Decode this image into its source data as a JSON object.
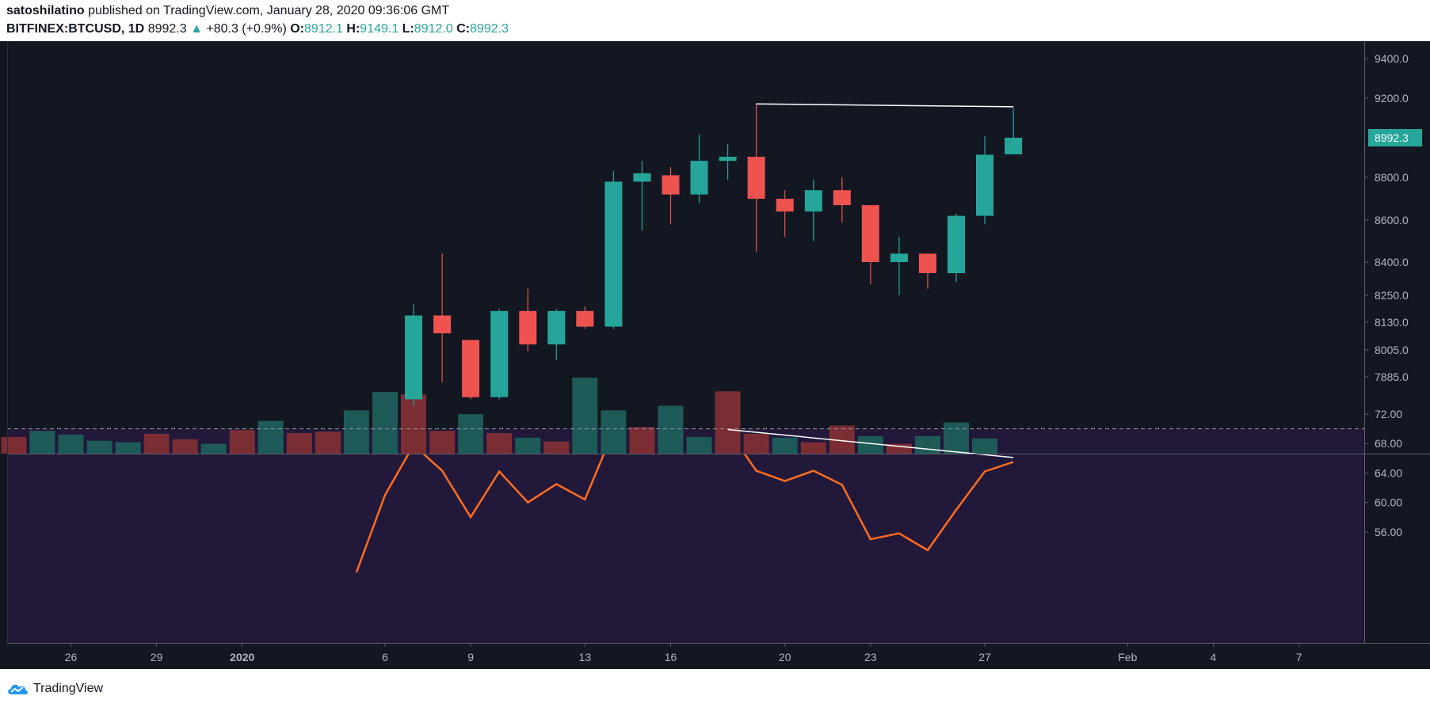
{
  "header": {
    "author": "satoshilatino",
    "published_text": "published on TradingView.com, January 28, 2020 09:36:06 GMT",
    "symbol": "BITFINEX:BTCUSD, 1D",
    "last_price": "8992.3",
    "change": "+80.3 (+0.9%)",
    "o_label": "O:",
    "o_value": "8912.1",
    "h_label": "H:",
    "h_value": "9149.1",
    "l_label": "L:",
    "l_value": "8912.0",
    "c_label": "C:",
    "c_value": "8992.3"
  },
  "footer": {
    "brand": "TradingView"
  },
  "colors": {
    "background": "#131722",
    "rsi_band": "#21183a",
    "up": "#26a69a",
    "down": "#ef5350",
    "vol_up": "#1e5a57",
    "vol_down": "#7a2e33",
    "rsi_line": "#ff6d1f",
    "trendline": "#ffffff"
  },
  "chart_data": [
    {
      "type": "candlestick",
      "price_ticks": [
        "9400.0",
        "9200.0",
        "8800.0",
        "8600.0",
        "8400.0",
        "8250.0",
        "8130.0",
        "8005.0",
        "7885.0"
      ],
      "last_price_label": "8992.3",
      "x_ticks": [
        "26",
        "29",
        "2020",
        "6",
        "9",
        "13",
        "16",
        "20",
        "23",
        "27",
        "Feb",
        "4",
        "7"
      ],
      "ohlc": [
        {
          "date": "2020-01-07",
          "o": 7780,
          "h": 8210,
          "l": 7750,
          "c": 8160
        },
        {
          "date": "2020-01-08",
          "o": 8160,
          "h": 8440,
          "l": 7860,
          "c": 8080
        },
        {
          "date": "2020-01-09",
          "o": 8050,
          "h": 8050,
          "l": 7780,
          "c": 7790
        },
        {
          "date": "2020-01-10",
          "o": 7790,
          "h": 8190,
          "l": 7780,
          "c": 8180
        },
        {
          "date": "2020-01-11",
          "o": 8180,
          "h": 8280,
          "l": 8000,
          "c": 8030
        },
        {
          "date": "2020-01-12",
          "o": 8030,
          "h": 8190,
          "l": 7960,
          "c": 8180
        },
        {
          "date": "2020-01-13",
          "o": 8180,
          "h": 8200,
          "l": 8100,
          "c": 8110
        },
        {
          "date": "2020-01-14",
          "o": 8110,
          "h": 8830,
          "l": 8100,
          "c": 8780
        },
        {
          "date": "2020-01-15",
          "o": 8780,
          "h": 8880,
          "l": 8550,
          "c": 8820
        },
        {
          "date": "2020-01-16",
          "o": 8810,
          "h": 8850,
          "l": 8580,
          "c": 8720
        },
        {
          "date": "2020-01-17",
          "o": 8720,
          "h": 9010,
          "l": 8680,
          "c": 8880
        },
        {
          "date": "2020-01-18",
          "o": 8880,
          "h": 8960,
          "l": 8790,
          "c": 8900
        },
        {
          "date": "2020-01-19",
          "o": 8900,
          "h": 9170,
          "l": 8450,
          "c": 8700
        },
        {
          "date": "2020-01-20",
          "o": 8700,
          "h": 8740,
          "l": 8520,
          "c": 8640
        },
        {
          "date": "2020-01-21",
          "o": 8640,
          "h": 8790,
          "l": 8500,
          "c": 8740
        },
        {
          "date": "2020-01-22",
          "o": 8740,
          "h": 8800,
          "l": 8590,
          "c": 8670
        },
        {
          "date": "2020-01-23",
          "o": 8670,
          "h": 8670,
          "l": 8300,
          "c": 8400
        },
        {
          "date": "2020-01-24",
          "o": 8400,
          "h": 8520,
          "l": 8250,
          "c": 8440
        },
        {
          "date": "2020-01-25",
          "o": 8440,
          "h": 8440,
          "l": 8280,
          "c": 8350
        },
        {
          "date": "2020-01-26",
          "o": 8350,
          "h": 8630,
          "l": 8310,
          "c": 8620
        },
        {
          "date": "2020-01-27",
          "o": 8620,
          "h": 9000,
          "l": 8580,
          "c": 8910
        },
        {
          "date": "2020-01-28",
          "o": 8912.1,
          "h": 9149.1,
          "l": 8912.0,
          "c": 8992.3
        }
      ],
      "volume": [
        {
          "date": "2019-12-23",
          "dir": "down",
          "v": 0.27
        },
        {
          "date": "2019-12-24",
          "dir": "down",
          "v": 0.22
        },
        {
          "date": "2019-12-25",
          "dir": "up",
          "v": 0.3
        },
        {
          "date": "2019-12-26",
          "dir": "up",
          "v": 0.25
        },
        {
          "date": "2019-12-27",
          "dir": "up",
          "v": 0.17
        },
        {
          "date": "2019-12-28",
          "dir": "up",
          "v": 0.15
        },
        {
          "date": "2019-12-29",
          "dir": "down",
          "v": 0.26
        },
        {
          "date": "2019-12-30",
          "dir": "down",
          "v": 0.19
        },
        {
          "date": "2019-12-31",
          "dir": "up",
          "v": 0.13
        },
        {
          "date": "2020-01-01",
          "dir": "down",
          "v": 0.31
        },
        {
          "date": "2020-01-02",
          "dir": "up",
          "v": 0.43
        },
        {
          "date": "2020-01-03",
          "dir": "down",
          "v": 0.27
        },
        {
          "date": "2020-01-04",
          "dir": "down",
          "v": 0.29
        },
        {
          "date": "2020-01-05",
          "dir": "up",
          "v": 0.57
        },
        {
          "date": "2020-01-06",
          "dir": "up",
          "v": 0.81
        },
        {
          "date": "2020-01-07",
          "dir": "down",
          "v": 0.78
        },
        {
          "date": "2020-01-08",
          "dir": "down",
          "v": 0.3
        },
        {
          "date": "2020-01-09",
          "dir": "up",
          "v": 0.52
        },
        {
          "date": "2020-01-10",
          "dir": "down",
          "v": 0.27
        },
        {
          "date": "2020-01-11",
          "dir": "up",
          "v": 0.21
        },
        {
          "date": "2020-01-12",
          "dir": "down",
          "v": 0.16
        },
        {
          "date": "2020-01-13",
          "dir": "up",
          "v": 1.0
        },
        {
          "date": "2020-01-14",
          "dir": "up",
          "v": 0.57
        },
        {
          "date": "2020-01-15",
          "dir": "down",
          "v": 0.35
        },
        {
          "date": "2020-01-16",
          "dir": "up",
          "v": 0.63
        },
        {
          "date": "2020-01-17",
          "dir": "up",
          "v": 0.22
        },
        {
          "date": "2020-01-18",
          "dir": "down",
          "v": 0.82
        },
        {
          "date": "2020-01-19",
          "dir": "down",
          "v": 0.26
        },
        {
          "date": "2020-01-20",
          "dir": "up",
          "v": 0.21
        },
        {
          "date": "2020-01-21",
          "dir": "down",
          "v": 0.15
        },
        {
          "date": "2020-01-22",
          "dir": "down",
          "v": 0.37
        },
        {
          "date": "2020-01-23",
          "dir": "up",
          "v": 0.23
        },
        {
          "date": "2020-01-24",
          "dir": "down",
          "v": 0.13
        },
        {
          "date": "2020-01-25",
          "dir": "up",
          "v": 0.23
        },
        {
          "date": "2020-01-26",
          "dir": "up",
          "v": 0.41
        },
        {
          "date": "2020-01-27",
          "dir": "up",
          "v": 0.2
        }
      ],
      "trendline": {
        "from": {
          "date": "2020-01-19",
          "price": 9170
        },
        "to": {
          "date": "2020-01-28",
          "price": 9155
        }
      }
    },
    {
      "type": "line",
      "name": "RSI",
      "y_ticks": [
        "72.00",
        "68.00",
        "64.00",
        "60.00",
        "56.00"
      ],
      "overbought": 70,
      "points": [
        {
          "date": "2020-01-05",
          "v": 50.5
        },
        {
          "date": "2020-01-06",
          "v": 61.0
        },
        {
          "date": "2020-01-07",
          "v": 67.8
        },
        {
          "date": "2020-01-08",
          "v": 64.3
        },
        {
          "date": "2020-01-09",
          "v": 58.0
        },
        {
          "date": "2020-01-10",
          "v": 64.2
        },
        {
          "date": "2020-01-11",
          "v": 60.0
        },
        {
          "date": "2020-01-12",
          "v": 62.5
        },
        {
          "date": "2020-01-13",
          "v": 60.4
        },
        {
          "date": "2020-01-14",
          "v": 69.7
        },
        {
          "date": "2020-01-15",
          "v": 70.0
        },
        {
          "date": "2020-01-16",
          "v": 67.7
        },
        {
          "date": "2020-01-17",
          "v": 69.7
        },
        {
          "date": "2020-01-18",
          "v": 69.9
        },
        {
          "date": "2020-01-19",
          "v": 64.3
        },
        {
          "date": "2020-01-20",
          "v": 62.9
        },
        {
          "date": "2020-01-21",
          "v": 64.3
        },
        {
          "date": "2020-01-22",
          "v": 62.4
        },
        {
          "date": "2020-01-23",
          "v": 55.0
        },
        {
          "date": "2020-01-24",
          "v": 55.8
        },
        {
          "date": "2020-01-25",
          "v": 53.5
        },
        {
          "date": "2020-01-26",
          "v": 59.0
        },
        {
          "date": "2020-01-27",
          "v": 64.2
        },
        {
          "date": "2020-01-28",
          "v": 65.5
        }
      ],
      "trendline": {
        "from": {
          "date": "2020-01-18",
          "v": 69.9
        },
        "to": {
          "date": "2020-01-28",
          "v": 66.1
        }
      }
    }
  ]
}
